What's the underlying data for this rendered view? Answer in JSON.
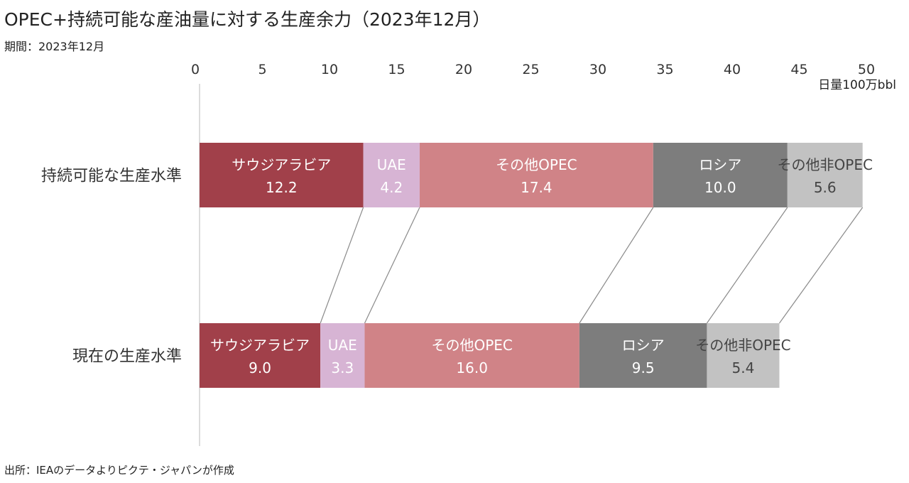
{
  "title": "OPEC+持続可能な産油量に対する生産余力（2023年12月）",
  "period": "期間：2023年12月",
  "source": "出所：IEAのデータよりピクテ・ジャパンが作成",
  "colors": {
    "saudi": "#a1404a",
    "uae": "#d7b4d4",
    "other_opec": "#d08387",
    "russia": "#7d7d7d",
    "other_non_opec": "#c2c2c2",
    "connector": "#8a8a8a",
    "axis": "#d0d0d0"
  },
  "chart_data": {
    "type": "bar",
    "orientation": "horizontal",
    "stacked": true,
    "title": "OPEC+持続可能な産油量に対する生産余力（2023年12月）",
    "unit_label": "日量100万bbl",
    "xlim": [
      0,
      50
    ],
    "xticks": [
      0,
      5,
      10,
      15,
      20,
      25,
      30,
      35,
      40,
      45,
      50
    ],
    "categories": [
      "持続可能な生産水準",
      "現在の生産水準"
    ],
    "series": [
      {
        "name": "サウジアラビア",
        "values": [
          12.2,
          9.0
        ],
        "labels": [
          "12.2",
          "9.0"
        ],
        "color_key": "saudi",
        "label_dark": false
      },
      {
        "name": "UAE",
        "values": [
          4.2,
          3.3
        ],
        "labels": [
          "4.2",
          "3.3"
        ],
        "color_key": "uae",
        "label_dark": false
      },
      {
        "name": "その他OPEC",
        "values": [
          17.4,
          16.0
        ],
        "labels": [
          "17.4",
          "16.0"
        ],
        "color_key": "other_opec",
        "label_dark": false
      },
      {
        "name": "ロシア",
        "values": [
          10.0,
          9.5
        ],
        "labels": [
          "10.0",
          "9.5"
        ],
        "color_key": "russia",
        "label_dark": false
      },
      {
        "name": "その他非OPEC",
        "values": [
          5.6,
          5.4
        ],
        "labels": [
          "5.6",
          "5.4"
        ],
        "color_key": "other_non_opec",
        "label_dark": true
      }
    ],
    "connector_lines": true,
    "grid": false
  }
}
